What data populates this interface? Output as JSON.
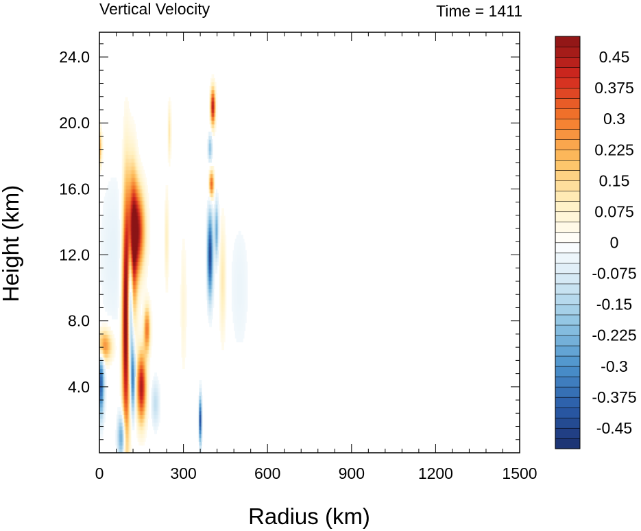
{
  "chart_data": {
    "type": "heatmap",
    "title": "Vertical Velocity",
    "time_label": "Time = 1411",
    "xlabel": "Radius (km)",
    "ylabel": "Height (km)",
    "xlim": [
      0,
      1500
    ],
    "ylim": [
      0,
      25.5
    ],
    "x_ticks": [
      "0",
      "300",
      "600",
      "900",
      "1200",
      "1500"
    ],
    "x_tick_values": [
      0,
      300,
      600,
      900,
      1200,
      1500
    ],
    "y_ticks": [
      "4.0",
      "8.0",
      "12.0",
      "16.0",
      "20.0",
      "24.0"
    ],
    "y_tick_values": [
      4,
      8,
      12,
      16,
      20,
      24
    ],
    "colorbar": {
      "levels": [
        -0.5,
        -0.475,
        -0.45,
        -0.425,
        -0.4,
        -0.375,
        -0.35,
        -0.325,
        -0.3,
        -0.275,
        -0.25,
        -0.225,
        -0.2,
        -0.175,
        -0.15,
        -0.125,
        -0.1,
        -0.075,
        -0.05,
        -0.025,
        0,
        0.025,
        0.05,
        0.075,
        0.1,
        0.125,
        0.15,
        0.175,
        0.2,
        0.225,
        0.25,
        0.275,
        0.3,
        0.325,
        0.35,
        0.375,
        0.4,
        0.425,
        0.45,
        0.475,
        0.5
      ],
      "labels": [
        "0.45",
        "0.375",
        "0.3",
        "0.225",
        "0.15",
        "0.075",
        "0",
        "-0.075",
        "-0.15",
        "-0.225",
        "-0.3",
        "-0.375",
        "-0.45"
      ],
      "label_values": [
        0.45,
        0.375,
        0.3,
        0.225,
        0.15,
        0.075,
        0,
        -0.075,
        -0.15,
        -0.225,
        -0.3,
        -0.375,
        -0.45
      ],
      "color_stops": [
        "#1b2f6e",
        "#2a5ba8",
        "#4b92cb",
        "#8cc2e2",
        "#cfe6f3",
        "#ffffff",
        "#fff0c0",
        "#fdc060",
        "#f47a2c",
        "#d3291f",
        "#8a1416"
      ]
    },
    "features": [
      {
        "r": 95,
        "h": 8.0,
        "sr": 10,
        "sh": 5.5,
        "w": 0.55
      },
      {
        "r": 118,
        "h": 12.5,
        "sr": 12,
        "sh": 3.2,
        "w": 0.45
      },
      {
        "r": 138,
        "h": 13.5,
        "sr": 18,
        "sh": 1.8,
        "w": 0.4
      },
      {
        "r": 110,
        "h": 9.5,
        "sr": 7,
        "sh": 3.0,
        "w": -0.45
      },
      {
        "r": 150,
        "h": 4.0,
        "sr": 12,
        "sh": 1.5,
        "w": 0.45
      },
      {
        "r": 120,
        "h": 4.5,
        "sr": 6,
        "sh": 1.5,
        "w": -0.35
      },
      {
        "r": 15,
        "h": 6.5,
        "sr": 22,
        "sh": 0.7,
        "w": 0.3
      },
      {
        "r": 5,
        "h": 4.2,
        "sr": 8,
        "sh": 1.4,
        "w": -0.4
      },
      {
        "r": 170,
        "h": 7.5,
        "sr": 8,
        "sh": 1.0,
        "w": 0.3
      },
      {
        "r": 395,
        "h": 12.0,
        "sr": 7,
        "sh": 1.8,
        "w": -0.45
      },
      {
        "r": 400,
        "h": 16.3,
        "sr": 6,
        "sh": 0.6,
        "w": 0.35
      },
      {
        "r": 405,
        "h": 21.0,
        "sr": 6,
        "sh": 0.8,
        "w": 0.45
      },
      {
        "r": 395,
        "h": 18.5,
        "sr": 5,
        "sh": 0.6,
        "w": -0.2
      },
      {
        "r": 418,
        "h": 13.5,
        "sr": 5,
        "sh": 1.2,
        "w": -0.25
      },
      {
        "r": 440,
        "h": 10.5,
        "sr": 8,
        "sh": 2.5,
        "w": 0.12
      },
      {
        "r": 250,
        "h": 19.5,
        "sr": 4,
        "sh": 1.2,
        "w": 0.12
      },
      {
        "r": 240,
        "h": 13.0,
        "sr": 5,
        "sh": 2.0,
        "w": 0.1
      },
      {
        "r": 50,
        "h": 12.0,
        "sr": 40,
        "sh": 4.0,
        "w": -0.05
      },
      {
        "r": 360,
        "h": 2.0,
        "sr": 3,
        "sh": 1.0,
        "w": -0.5
      },
      {
        "r": 0,
        "h": 18.5,
        "sr": 6,
        "sh": 0.8,
        "w": 0.25
      },
      {
        "r": 80,
        "h": 1.0,
        "sr": 10,
        "sh": 1.0,
        "w": -0.3
      },
      {
        "r": 200,
        "h": 3.0,
        "sr": 10,
        "sh": 1.0,
        "w": -0.12
      },
      {
        "r": 500,
        "h": 10.0,
        "sr": 30,
        "sh": 3.5,
        "w": -0.04
      },
      {
        "r": 300,
        "h": 9.0,
        "sr": 8,
        "sh": 3.0,
        "w": 0.06
      }
    ]
  }
}
